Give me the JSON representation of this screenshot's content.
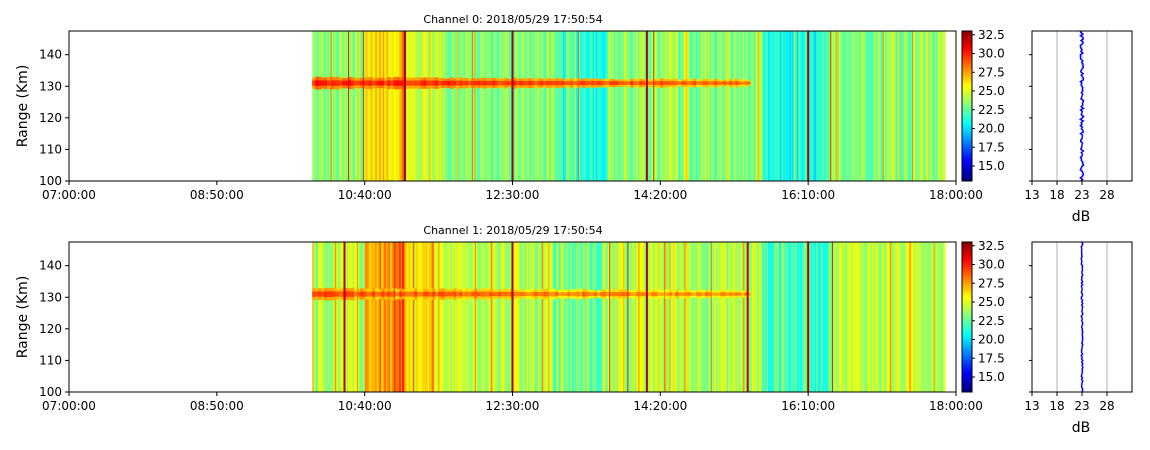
{
  "chart_data": [
    {
      "type": "heatmap",
      "title": "Channel 0: 2018/05/29 17:50:54",
      "ylabel": "Range (Km)",
      "xlabel": "",
      "x_ticks": [
        "07:00:00",
        "08:50:00",
        "10:40:00",
        "12:30:00",
        "14:20:00",
        "16:10:00",
        "18:00:00"
      ],
      "x_range": [
        "07:00:00",
        "18:00:00"
      ],
      "y_ticks": [
        100,
        110,
        120,
        130,
        140
      ],
      "y_range": [
        100,
        147.5
      ],
      "data_time_range": [
        "10:01:00",
        "17:50:54"
      ],
      "colormap": "jet",
      "colorbar_ticks": [
        "15.0",
        "17.5",
        "20.0",
        "22.5",
        "25.0",
        "27.5",
        "30.0",
        "32.5"
      ],
      "colorbar_range": [
        13.0,
        33.0
      ],
      "background_db": 23,
      "echo_band": {
        "range_km": 131,
        "time_start": "10:01:00",
        "time_end": "15:25:00",
        "db": 30
      },
      "strong_vertical_lines": [
        "11:10:00",
        "12:30:00",
        "14:10:00",
        "16:10:00"
      ],
      "profile": {
        "type": "line",
        "xlabel": "dB",
        "x_ticks": [
          13,
          18,
          23,
          28
        ],
        "x_range": [
          13,
          33
        ],
        "mean_db": 23,
        "color": "#0000ff"
      }
    },
    {
      "type": "heatmap",
      "title": "Channel 1: 2018/05/29 17:50:54",
      "ylabel": "Range (Km)",
      "xlabel": "",
      "x_ticks": [
        "07:00:00",
        "08:50:00",
        "10:40:00",
        "12:30:00",
        "14:20:00",
        "16:10:00",
        "18:00:00"
      ],
      "x_range": [
        "07:00:00",
        "18:00:00"
      ],
      "y_ticks": [
        100,
        110,
        120,
        130,
        140
      ],
      "y_range": [
        100,
        147.5
      ],
      "data_time_range": [
        "10:01:00",
        "17:50:54"
      ],
      "colormap": "jet",
      "colorbar_ticks": [
        "15.0",
        "17.5",
        "20.0",
        "22.5",
        "25.0",
        "27.5",
        "30.0",
        "32.5"
      ],
      "colorbar_range": [
        13.0,
        33.0
      ],
      "background_db": 24,
      "echo_band": {
        "range_km": 131,
        "time_start": "10:01:00",
        "time_end": "15:25:00",
        "db": 29
      },
      "strong_vertical_lines": [
        "10:25:00",
        "12:30:00",
        "14:10:00",
        "15:25:00",
        "16:10:00"
      ],
      "profile": {
        "type": "line",
        "xlabel": "dB",
        "x_ticks": [
          13,
          18,
          23,
          28
        ],
        "x_range": [
          13,
          33
        ],
        "mean_db": 23,
        "color": "#0000ff"
      }
    }
  ]
}
